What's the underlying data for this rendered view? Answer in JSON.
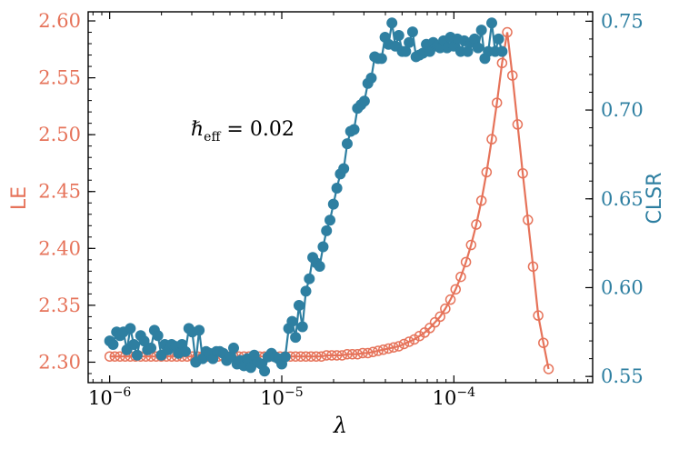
{
  "chart_data": {
    "type": "line",
    "x_scale": "log",
    "xlim": [
      7.5e-07,
      0.00064
    ],
    "xlabel": "λ",
    "x_ticks": [
      {
        "value": 1e-06,
        "base": "10",
        "exp": "−6"
      },
      {
        "value": 1e-05,
        "base": "10",
        "exp": "−5"
      },
      {
        "value": 0.0001,
        "base": "10",
        "exp": "−4"
      }
    ],
    "left_axis": {
      "label": "LE",
      "color": "#e6735a",
      "ylim": [
        2.282,
        2.608
      ],
      "ticks": [
        2.3,
        2.35,
        2.4,
        2.45,
        2.5,
        2.55,
        2.6
      ],
      "tick_labels": [
        "2.30",
        "2.35",
        "2.40",
        "2.45",
        "2.50",
        "2.55",
        "2.60"
      ]
    },
    "right_axis": {
      "label": "CLSR",
      "color": "#2e7fa1",
      "ylim": [
        0.5465,
        0.7553
      ],
      "ticks": [
        0.55,
        0.6,
        0.65,
        0.7,
        0.75
      ],
      "tick_labels": [
        "0.55",
        "0.60",
        "0.65",
        "0.70",
        "0.75"
      ]
    },
    "annotation": {
      "symbol": "ℏ",
      "subscript": "eff",
      "text": " = 0.02"
    },
    "series": [
      {
        "name": "LE",
        "axis": "left",
        "marker": "open-circle",
        "color": "#e6735a",
        "x_log10_start": -6.0,
        "x_log10_step": 0.03,
        "values": [
          2.305,
          2.305,
          2.305,
          2.305,
          2.305,
          2.305,
          2.305,
          2.305,
          2.305,
          2.305,
          2.305,
          2.305,
          2.305,
          2.305,
          2.305,
          2.305,
          2.305,
          2.305,
          2.305,
          2.305,
          2.305,
          2.305,
          2.305,
          2.305,
          2.305,
          2.305,
          2.305,
          2.305,
          2.305,
          2.305,
          2.305,
          2.305,
          2.305,
          2.305,
          2.305,
          2.305,
          2.305,
          2.305,
          2.305,
          2.305,
          2.305,
          2.305,
          2.306,
          2.306,
          2.306,
          2.306,
          2.307,
          2.307,
          2.307,
          2.308,
          2.308,
          2.309,
          2.31,
          2.311,
          2.312,
          2.313,
          2.314,
          2.316,
          2.318,
          2.32,
          2.323,
          2.326,
          2.33,
          2.335,
          2.34,
          2.347,
          2.355,
          2.364,
          2.375,
          2.388,
          2.403,
          2.421,
          2.442,
          2.467,
          2.496,
          2.528,
          2.563,
          2.59,
          2.552,
          2.509,
          2.466,
          2.425,
          2.384,
          2.341,
          2.317,
          2.294
        ]
      },
      {
        "name": "CLSR",
        "axis": "right",
        "marker": "filled-circle",
        "color": "#2e7fa1",
        "x_log10_start": -6.0,
        "x_log10_step": 0.02,
        "values": [
          0.57,
          0.568,
          0.575,
          0.573,
          0.575,
          0.565,
          0.577,
          0.568,
          0.562,
          0.573,
          0.57,
          0.565,
          0.566,
          0.576,
          0.573,
          0.562,
          0.568,
          0.565,
          0.568,
          0.567,
          0.563,
          0.568,
          0.564,
          0.577,
          0.575,
          0.558,
          0.576,
          0.56,
          0.564,
          0.563,
          0.56,
          0.564,
          0.564,
          0.563,
          0.559,
          0.561,
          0.566,
          0.557,
          0.559,
          0.556,
          0.56,
          0.555,
          0.562,
          0.558,
          0.557,
          0.553,
          0.561,
          0.563,
          0.561,
          0.56,
          0.557,
          0.561,
          0.577,
          0.581,
          0.572,
          0.59,
          0.578,
          0.598,
          0.605,
          0.617,
          0.614,
          0.612,
          0.623,
          0.632,
          0.638,
          0.647,
          0.656,
          0.664,
          0.667,
          0.681,
          0.688,
          0.689,
          0.701,
          0.703,
          0.705,
          0.715,
          0.718,
          0.73,
          0.729,
          0.729,
          0.741,
          0.737,
          0.749,
          0.736,
          0.742,
          0.733,
          0.733,
          0.738,
          0.744,
          0.73,
          0.731,
          0.732,
          0.737,
          0.733,
          0.738,
          0.736,
          0.735,
          0.739,
          0.735,
          0.741,
          0.736,
          0.74,
          0.733,
          0.739,
          0.733,
          0.738,
          0.74,
          0.735,
          0.745,
          0.729,
          0.733,
          0.749,
          0.733,
          0.74,
          0.733
        ]
      }
    ]
  }
}
